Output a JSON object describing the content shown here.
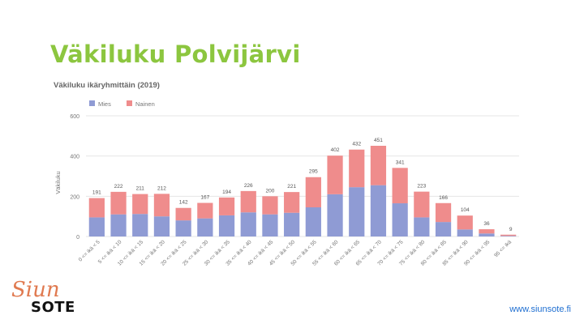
{
  "slide": {
    "title": "Väkiluku Polvijärvi",
    "footer_url": "www.siunsote.fi",
    "logo": {
      "script_text": "Siun",
      "text": "SOTE"
    }
  },
  "colors": {
    "title": "#8cc63f",
    "mies": "#8f9bd4",
    "nainen": "#ef8c8c",
    "grid": "#e6e6e6",
    "axis_text": "#777777"
  },
  "chart_data": {
    "type": "bar",
    "stacked": true,
    "title": "Väkiluku ikäryhmittäin (2019)",
    "ylabel": "Väkiluku",
    "xlabel": "",
    "ylim": [
      0,
      600
    ],
    "yticks": [
      0,
      200,
      400,
      600
    ],
    "grid": true,
    "legend_position": "top-left",
    "categories": [
      "0 <= ikä < 5",
      "5 <= ikä < 10",
      "10 <= ikä < 15",
      "15 <= ikä < 20",
      "20 <= ikä < 25",
      "25 <= ikä < 30",
      "30 <= ikä < 35",
      "35 <= ikä < 40",
      "40 <= ikä < 45",
      "45 <= ikä < 50",
      "50 <= ikä < 55",
      "55 <= ikä < 60",
      "60 <= ikä < 65",
      "65 <= ikä < 70",
      "70 <= ikä < 75",
      "75 <= ikä < 80",
      "80 <= ikä < 85",
      "85 <= ikä < 90",
      "90 <= ikä < 95",
      "95 <= ikä"
    ],
    "totals": [
      191,
      222,
      211,
      212,
      142,
      167,
      194,
      226,
      200,
      221,
      295,
      402,
      432,
      451,
      341,
      223,
      166,
      104,
      36,
      9
    ],
    "series": [
      {
        "name": "Mies",
        "color": "#8f9bd4",
        "values": [
          95,
          110,
          112,
          100,
          80,
          90,
          105,
          120,
          110,
          118,
          145,
          210,
          245,
          255,
          165,
          95,
          72,
          35,
          15,
          3
        ]
      },
      {
        "name": "Nainen",
        "color": "#ef8c8c",
        "values": [
          96,
          112,
          99,
          112,
          62,
          77,
          89,
          106,
          90,
          103,
          150,
          192,
          187,
          196,
          176,
          128,
          94,
          69,
          21,
          6
        ]
      }
    ]
  }
}
